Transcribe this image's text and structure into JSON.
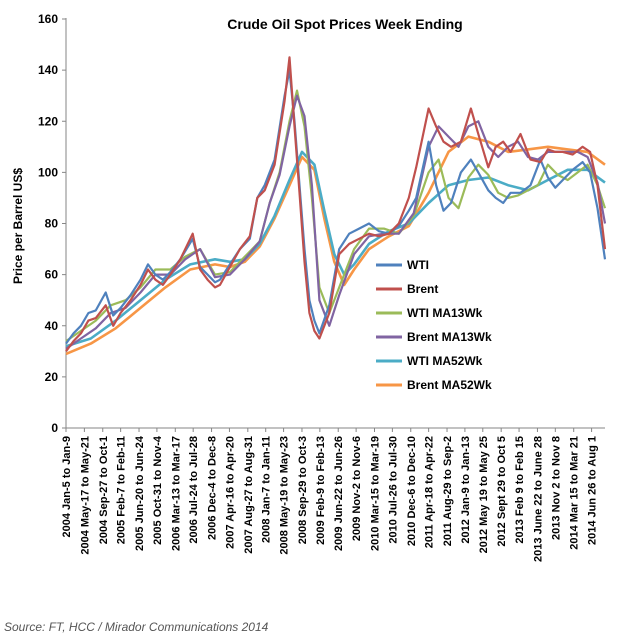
{
  "chart_data": {
    "type": "line",
    "title": "Crude Oil Spot Prices Week Ending",
    "xlabel": "",
    "ylabel": "Price per Barrel US$",
    "ylim": [
      0,
      160
    ],
    "yticks": [
      0,
      20,
      40,
      60,
      80,
      100,
      120,
      140,
      160
    ],
    "xrange": [
      2004.0,
      2014.85
    ],
    "grid": false,
    "legend_position": "right-middle",
    "categories": [
      "2004 Jan-5 to Jan-9",
      "2004 May-17 to May-21",
      "2004 Sep-27 to Oct-1",
      "2005 Feb-7 to Feb-11",
      "2005 Jun-20 to Jun-24",
      "2005 Oct-31 to Nov-4",
      "2006 Mar-13 to Mar-17",
      "2006 Jul-24 to Jul-28",
      "2006 Dec-4 to Dec-8",
      "2007 Apr-16 to Apr-20",
      "2007 Aug-27 to Aug-31",
      "2008 Jan-7 to Jan-11",
      "2008 May-19 to May-23",
      "2008 Sep-29 to Oct-3",
      "2009 Feb-9 to Feb-13",
      "2009 Jun-22 to Jun-26",
      "2009 Nov-2 to Nov-6",
      "2010 Mar-15 to Mar-19",
      "2010 Jul-26 to Jul-30",
      "2010 Dec-6 to Dec-10",
      "2011 Apr-18 to Apr-22",
      "2011 Aug-29 to Sep-2",
      "2012 Jan-9 to Jan-13",
      "2012 May 19 to May 25",
      "2012 Sept 29 to Oct 5",
      "2013 Feb 9 to Feb 15",
      "2013 June 22 to June 28",
      "2013 Nov 2 to Nov 8",
      "2014 Mar 15 to Mar 21",
      "2014 Jun 26 to Aug 1"
    ],
    "category_x": [
      2004.0,
      2004.37,
      2004.74,
      2005.1,
      2005.47,
      2005.83,
      2006.2,
      2006.56,
      2006.93,
      2007.29,
      2007.66,
      2008.02,
      2008.38,
      2008.75,
      2009.11,
      2009.48,
      2009.84,
      2010.21,
      2010.57,
      2010.94,
      2011.3,
      2011.67,
      2012.03,
      2012.39,
      2012.76,
      2013.12,
      2013.49,
      2013.85,
      2014.22,
      2014.58
    ],
    "series": [
      {
        "name": "WTI",
        "color": "#4f81bd",
        "x": [
          2004.0,
          2004.15,
          2004.3,
          2004.45,
          2004.6,
          2004.8,
          2004.95,
          2005.1,
          2005.3,
          2005.5,
          2005.65,
          2005.8,
          2005.95,
          2006.1,
          2006.3,
          2006.55,
          2006.7,
          2006.85,
          2007.0,
          2007.1,
          2007.3,
          2007.5,
          2007.7,
          2007.85,
          2008.0,
          2008.2,
          2008.4,
          2008.5,
          2008.6,
          2008.7,
          2008.8,
          2008.9,
          2009.0,
          2009.1,
          2009.3,
          2009.5,
          2009.7,
          2009.9,
          2010.1,
          2010.3,
          2010.5,
          2010.7,
          2010.9,
          2011.05,
          2011.3,
          2011.45,
          2011.6,
          2011.75,
          2011.95,
          2012.15,
          2012.3,
          2012.5,
          2012.65,
          2012.8,
          2012.95,
          2013.15,
          2013.35,
          2013.55,
          2013.7,
          2013.85,
          2014.0,
          2014.2,
          2014.4,
          2014.55,
          2014.7,
          2014.85
        ],
        "values": [
          33,
          37,
          40,
          45,
          46,
          53,
          44,
          47,
          52,
          58,
          64,
          60,
          58,
          61,
          66,
          74,
          63,
          60,
          57,
          58,
          64,
          70,
          74,
          90,
          95,
          105,
          130,
          140,
          120,
          95,
          70,
          50,
          42,
          37,
          48,
          70,
          76,
          78,
          80,
          77,
          76,
          79,
          85,
          90,
          112,
          95,
          85,
          88,
          100,
          105,
          100,
          93,
          90,
          88,
          92,
          92,
          95,
          105,
          98,
          94,
          97,
          101,
          104,
          100,
          86,
          66
        ]
      },
      {
        "name": "Brent",
        "color": "#c0504d",
        "x": [
          2004.0,
          2004.15,
          2004.3,
          2004.45,
          2004.6,
          2004.8,
          2004.95,
          2005.1,
          2005.3,
          2005.5,
          2005.65,
          2005.8,
          2005.95,
          2006.1,
          2006.3,
          2006.55,
          2006.7,
          2006.85,
          2007.0,
          2007.1,
          2007.3,
          2007.5,
          2007.7,
          2007.85,
          2008.0,
          2008.2,
          2008.4,
          2008.5,
          2008.6,
          2008.7,
          2008.8,
          2008.9,
          2009.0,
          2009.1,
          2009.3,
          2009.5,
          2009.7,
          2009.9,
          2010.1,
          2010.3,
          2010.5,
          2010.7,
          2010.9,
          2011.05,
          2011.3,
          2011.45,
          2011.6,
          2011.75,
          2011.95,
          2012.15,
          2012.3,
          2012.5,
          2012.65,
          2012.8,
          2012.95,
          2013.15,
          2013.35,
          2013.55,
          2013.7,
          2013.85,
          2014.0,
          2014.2,
          2014.4,
          2014.55,
          2014.7,
          2014.85
        ],
        "values": [
          30,
          34,
          37,
          42,
          43,
          48,
          40,
          45,
          50,
          56,
          62,
          58,
          56,
          60,
          66,
          76,
          62,
          58,
          55,
          56,
          63,
          70,
          75,
          90,
          93,
          103,
          128,
          145,
          118,
          92,
          65,
          45,
          38,
          35,
          45,
          68,
          72,
          74,
          76,
          75,
          76,
          80,
          90,
          102,
          125,
          118,
          112,
          110,
          112,
          125,
          115,
          102,
          110,
          112,
          108,
          115,
          105,
          104,
          109,
          108,
          108,
          107,
          110,
          108,
          95,
          70
        ]
      },
      {
        "name": "WTI MA13Wk",
        "color": "#9bbb59",
        "x": [
          2004.0,
          2004.3,
          2004.6,
          2004.9,
          2005.2,
          2005.5,
          2005.8,
          2006.1,
          2006.4,
          2006.7,
          2007.0,
          2007.3,
          2007.6,
          2007.9,
          2008.1,
          2008.3,
          2008.5,
          2008.65,
          2008.8,
          2008.95,
          2009.1,
          2009.3,
          2009.5,
          2009.8,
          2010.1,
          2010.4,
          2010.7,
          2011.0,
          2011.3,
          2011.5,
          2011.7,
          2011.9,
          2012.1,
          2012.3,
          2012.5,
          2012.7,
          2012.9,
          2013.1,
          2013.3,
          2013.5,
          2013.7,
          2013.9,
          2014.1,
          2014.3,
          2014.5,
          2014.7,
          2014.85
        ],
        "values": [
          34,
          38,
          42,
          48,
          50,
          55,
          62,
          62,
          67,
          70,
          60,
          61,
          67,
          73,
          88,
          100,
          120,
          132,
          118,
          90,
          55,
          45,
          55,
          70,
          78,
          78,
          76,
          83,
          100,
          105,
          90,
          86,
          98,
          103,
          99,
          92,
          90,
          91,
          93,
          95,
          103,
          99,
          97,
          100,
          103,
          95,
          86
        ]
      },
      {
        "name": "Brent MA13Wk",
        "color": "#8064a2",
        "x": [
          2004.0,
          2004.3,
          2004.6,
          2004.9,
          2005.2,
          2005.5,
          2005.8,
          2006.1,
          2006.4,
          2006.7,
          2007.0,
          2007.3,
          2007.6,
          2007.9,
          2008.1,
          2008.3,
          2008.5,
          2008.65,
          2008.8,
          2008.95,
          2009.1,
          2009.3,
          2009.5,
          2009.8,
          2010.1,
          2010.4,
          2010.7,
          2011.0,
          2011.3,
          2011.5,
          2011.7,
          2011.9,
          2012.1,
          2012.3,
          2012.5,
          2012.7,
          2012.9,
          2013.1,
          2013.3,
          2013.5,
          2013.7,
          2013.9,
          2014.1,
          2014.3,
          2014.5,
          2014.7,
          2014.85
        ],
        "values": [
          31,
          35,
          39,
          45,
          47,
          53,
          60,
          60,
          66,
          70,
          59,
          60,
          66,
          73,
          88,
          99,
          118,
          130,
          122,
          95,
          50,
          40,
          52,
          68,
          75,
          76,
          76,
          84,
          110,
          118,
          114,
          110,
          118,
          120,
          110,
          106,
          110,
          112,
          106,
          105,
          108,
          108,
          108,
          108,
          106,
          96,
          80
        ]
      },
      {
        "name": "WTI MA52Wk",
        "color": "#4bacc6",
        "x": [
          2004.0,
          2004.5,
          2005.0,
          2005.5,
          2006.0,
          2006.5,
          2007.0,
          2007.3,
          2007.6,
          2007.9,
          2008.2,
          2008.5,
          2008.75,
          2009.0,
          2009.2,
          2009.4,
          2009.6,
          2009.8,
          2010.1,
          2010.5,
          2010.9,
          2011.3,
          2011.7,
          2012.1,
          2012.5,
          2012.9,
          2013.3,
          2013.7,
          2014.1,
          2014.5,
          2014.85
        ],
        "values": [
          32,
          35,
          42,
          50,
          58,
          64,
          66,
          65,
          66,
          72,
          83,
          97,
          108,
          103,
          85,
          68,
          60,
          64,
          72,
          77,
          80,
          88,
          95,
          97,
          98,
          95,
          93,
          97,
          101,
          101,
          96
        ]
      },
      {
        "name": "Brent MA52Wk",
        "color": "#f79646",
        "x": [
          2004.0,
          2004.5,
          2005.0,
          2005.5,
          2006.0,
          2006.5,
          2007.0,
          2007.3,
          2007.6,
          2007.9,
          2008.2,
          2008.5,
          2008.75,
          2009.0,
          2009.2,
          2009.4,
          2009.6,
          2009.8,
          2010.1,
          2010.5,
          2010.9,
          2011.3,
          2011.7,
          2012.1,
          2012.5,
          2012.9,
          2013.3,
          2013.7,
          2014.1,
          2014.5,
          2014.85
        ],
        "values": [
          29,
          33,
          39,
          47,
          55,
          62,
          64,
          63,
          65,
          71,
          82,
          95,
          106,
          101,
          82,
          65,
          56,
          62,
          70,
          75,
          79,
          92,
          108,
          114,
          112,
          108,
          109,
          110,
          109,
          108,
          103
        ]
      }
    ]
  },
  "source": "Source: FT, HCC / Mirador Communications 2014"
}
